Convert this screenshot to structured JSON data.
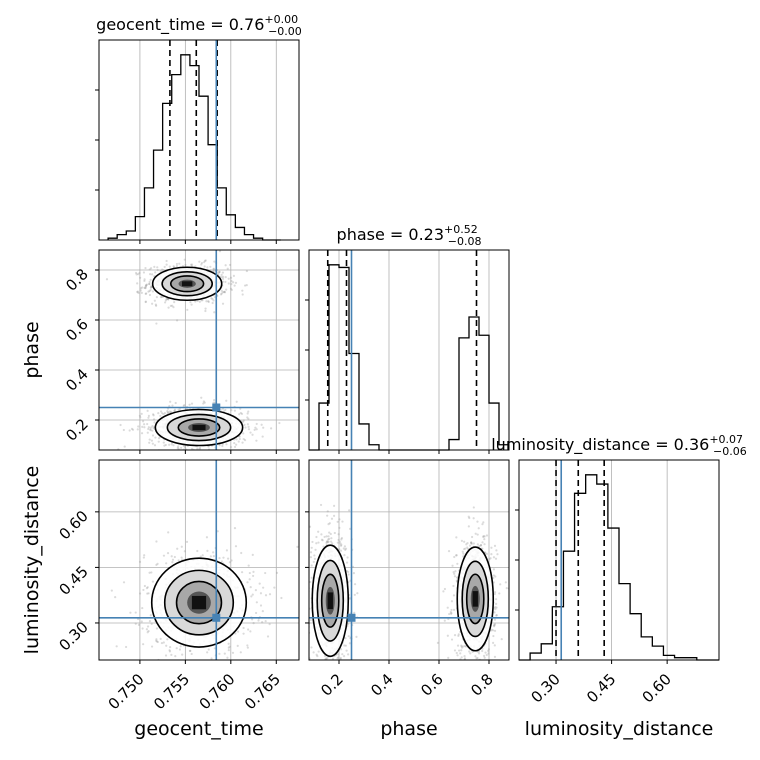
{
  "chart_data": {
    "type": "corner",
    "grid": true,
    "colors": {
      "truth": "#4682b4",
      "histogram": "#000000",
      "quantile": "#000000",
      "contour": "#000000",
      "scatter": "#999999",
      "grid": "#b0b0b0"
    },
    "parameters": [
      {
        "name": "geocent_time",
        "title": "geocent_time = 0.76",
        "title_sup": "+0.00",
        "title_sub": "−0.00",
        "range": [
          0.7455,
          0.7675
        ],
        "ticks": [
          0.75,
          0.755,
          0.76,
          0.765
        ],
        "tick_labels": [
          "0.750",
          "0.755",
          "0.760",
          "0.765"
        ],
        "xlabel": "geocent_time",
        "quantiles": [
          0.7533,
          0.7562,
          0.7585
        ],
        "truth": 0.7584,
        "hist_edges": [
          0.7465,
          0.7475,
          0.7485,
          0.7495,
          0.7505,
          0.7515,
          0.7525,
          0.7535,
          0.7545,
          0.7555,
          0.7565,
          0.7575,
          0.7585,
          0.7595,
          0.7605,
          0.7615,
          0.7625,
          0.7635,
          0.7645,
          0.7655
        ],
        "hist_counts": [
          1,
          3,
          5,
          13,
          29,
          50,
          76,
          92,
          103,
          97,
          80,
          53,
          29,
          14,
          7,
          3,
          1,
          0,
          0
        ]
      },
      {
        "name": "phase",
        "title": "phase = 0.23",
        "title_sup": "+0.52",
        "title_sub": "−0.08",
        "range": [
          0.08,
          0.88
        ],
        "ticks": [
          0.2,
          0.4,
          0.6,
          0.8
        ],
        "tick_labels": [
          "0.2",
          "0.4",
          "0.6",
          "0.8"
        ],
        "xlabel": "phase",
        "ylabel": "phase",
        "quantiles": [
          0.155,
          0.23,
          0.75
        ],
        "truth": 0.25,
        "hist_edges": [
          0.08,
          0.12,
          0.16,
          0.2,
          0.24,
          0.28,
          0.32,
          0.36,
          0.4,
          0.44,
          0.48,
          0.52,
          0.56,
          0.6,
          0.64,
          0.68,
          0.72,
          0.76,
          0.8,
          0.84,
          0.88
        ],
        "hist_counts": [
          0,
          18,
          71,
          70,
          37,
          10,
          2,
          0,
          0,
          0,
          0,
          0,
          0,
          0,
          4,
          43,
          51,
          44,
          18,
          2
        ]
      },
      {
        "name": "luminosity_distance",
        "title": "luminosity_distance = 0.36",
        "title_sup": "+0.07",
        "title_sub": "−0.06",
        "range": [
          0.2,
          0.74
        ],
        "ticks": [
          0.3,
          0.45,
          0.6
        ],
        "tick_labels": [
          "0.30",
          "0.45",
          "0.60"
        ],
        "xlabel": "luminosity_distance",
        "ylabel": "luminosity_distance",
        "quantiles": [
          0.3,
          0.36,
          0.43
        ],
        "truth": 0.314,
        "hist_edges": [
          0.2,
          0.23,
          0.26,
          0.29,
          0.32,
          0.35,
          0.38,
          0.41,
          0.44,
          0.47,
          0.5,
          0.53,
          0.56,
          0.59,
          0.62,
          0.65,
          0.68,
          0.71,
          0.74
        ],
        "hist_counts": [
          0,
          3,
          7,
          23,
          47,
          72,
          80,
          76,
          57,
          33,
          20,
          10,
          6,
          2,
          1,
          1,
          0,
          0
        ]
      }
    ],
    "joint_panels": [
      {
        "x": "geocent_time",
        "y": "phase",
        "modes": [
          {
            "cx": 0.7552,
            "cy": 0.745,
            "sx": 0.0019,
            "sy": 0.033
          },
          {
            "cx": 0.7565,
            "cy": 0.17,
            "sx": 0.0024,
            "sy": 0.036
          }
        ]
      },
      {
        "x": "geocent_time",
        "y": "luminosity_distance",
        "modes": [
          {
            "cx": 0.7565,
            "cy": 0.355,
            "sx": 0.0026,
            "sy": 0.06
          }
        ]
      },
      {
        "x": "phase",
        "y": "luminosity_distance",
        "modes": [
          {
            "cx": 0.165,
            "cy": 0.36,
            "sx": 0.036,
            "sy": 0.075
          },
          {
            "cx": 0.745,
            "cy": 0.365,
            "sx": 0.036,
            "sy": 0.07
          }
        ]
      }
    ]
  }
}
